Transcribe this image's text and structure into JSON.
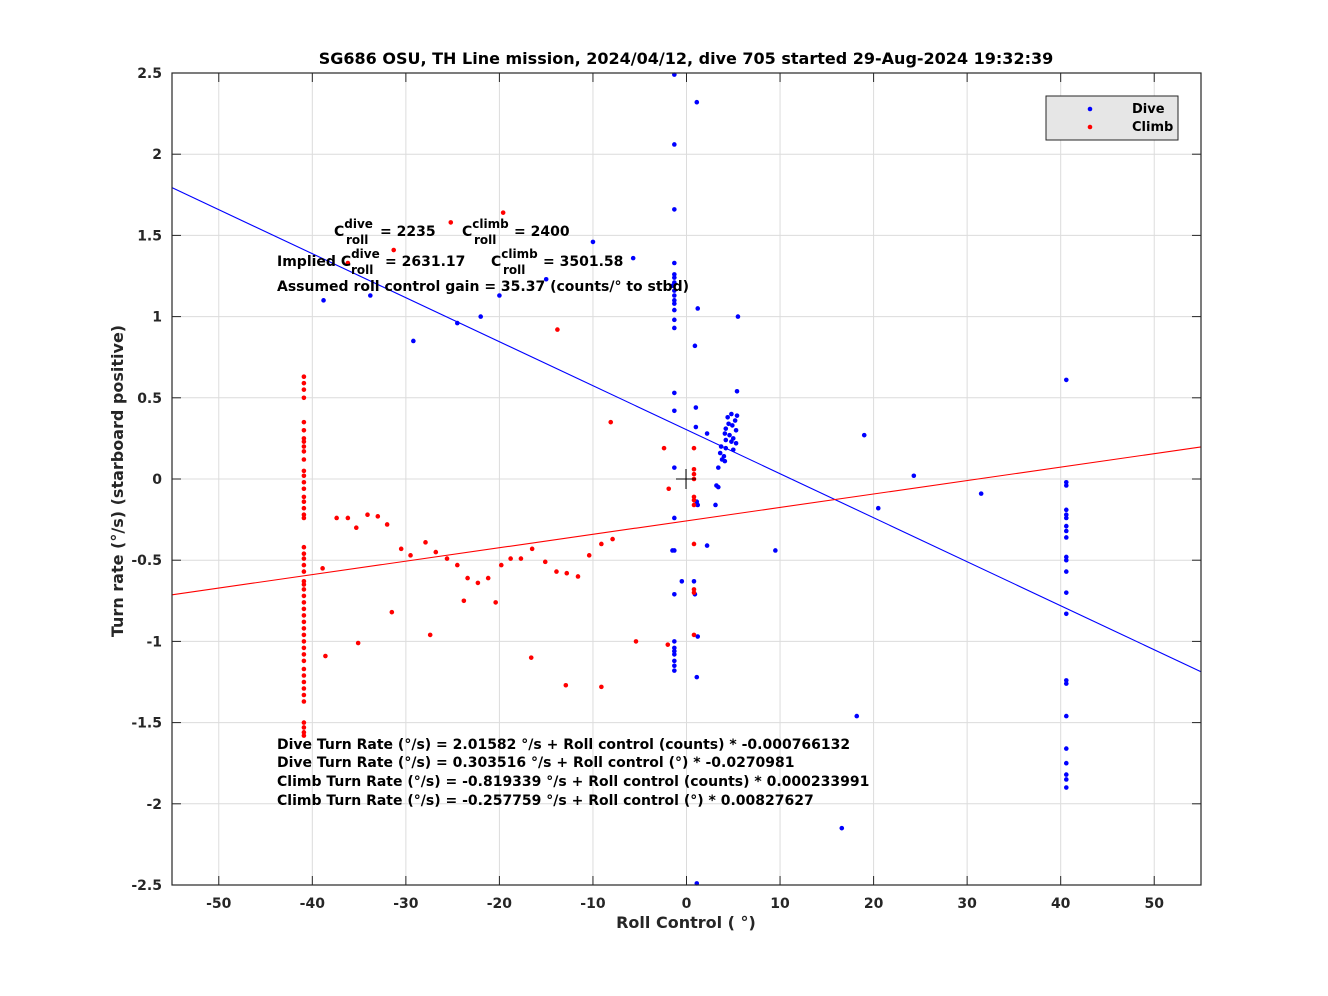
{
  "chart_data": {
    "type": "scatter",
    "title": "SG686 OSU, TH Line mission, 2024/04/12, dive 705 started 29-Aug-2024 19:32:39",
    "xlabel": "Roll Control ( °)",
    "ylabel": "Turn rate (°/s) (starboard positive)",
    "xlim": [
      -55,
      55
    ],
    "ylim": [
      -2.5,
      2.5
    ],
    "xticks": [
      -50,
      -40,
      -30,
      -20,
      -10,
      0,
      10,
      20,
      30,
      40,
      50
    ],
    "xtick_labels": [
      "-50",
      "-40",
      "-30",
      "-20",
      "-10",
      "0",
      "10",
      "20",
      "30",
      "40",
      "50"
    ],
    "yticks": [
      -2.5,
      -2,
      -1.5,
      -1,
      -0.5,
      0,
      0.5,
      1,
      1.5,
      2,
      2.5
    ],
    "ytick_labels": [
      "-2.5",
      "-2",
      "-1.5",
      "-1",
      "-0.5",
      "0",
      "0.5",
      "1",
      "1.5",
      "2",
      "2.5"
    ],
    "grid": true,
    "legend_position": "top-right",
    "legend": [
      "Dive",
      "Climb"
    ],
    "colors": {
      "dive": "#0000ff",
      "climb": "#ff0000",
      "grid": "#dcdcdc",
      "legend_bg": "#e6e6e6"
    },
    "series": [
      {
        "name": "Dive",
        "color": "#0000ff",
        "points": [
          [
            -1.3,
            2.49
          ],
          [
            1.1,
            2.32
          ],
          [
            -1.3,
            2.06
          ],
          [
            -1.3,
            1.66
          ],
          [
            -10,
            1.46
          ],
          [
            -5.7,
            1.36
          ],
          [
            -1.3,
            1.33
          ],
          [
            -1.3,
            1.26
          ],
          [
            -1.3,
            1.24
          ],
          [
            -1.3,
            1.21
          ],
          [
            -1.5,
            1.19
          ],
          [
            -1.3,
            1.16
          ],
          [
            -15,
            1.23
          ],
          [
            -33.8,
            1.13
          ],
          [
            -20,
            1.13
          ],
          [
            -1.3,
            1.13
          ],
          [
            -1.3,
            1.1
          ],
          [
            -1.3,
            1.08
          ],
          [
            -38.8,
            1.1
          ],
          [
            -1.3,
            1.04
          ],
          [
            1.2,
            1.05
          ],
          [
            -22,
            1.0
          ],
          [
            5.5,
            1.0
          ],
          [
            -24.5,
            0.96
          ],
          [
            -1.3,
            0.98
          ],
          [
            -1.3,
            0.93
          ],
          [
            -29.2,
            0.85
          ],
          [
            0.9,
            0.82
          ],
          [
            -1.3,
            0.53
          ],
          [
            5.4,
            0.54
          ],
          [
            1.0,
            0.44
          ],
          [
            -1.3,
            0.42
          ],
          [
            4.8,
            0.4
          ],
          [
            5.4,
            0.39
          ],
          [
            4.4,
            0.38
          ],
          [
            5.2,
            0.36
          ],
          [
            4.5,
            0.34
          ],
          [
            4.9,
            0.33
          ],
          [
            4.2,
            0.31
          ],
          [
            1.0,
            0.32
          ],
          [
            5.3,
            0.3
          ],
          [
            4.1,
            0.28
          ],
          [
            2.2,
            0.28
          ],
          [
            4.6,
            0.27
          ],
          [
            19,
            0.27
          ],
          [
            5.0,
            0.25
          ],
          [
            4.2,
            0.24
          ],
          [
            4.8,
            0.23
          ],
          [
            5.3,
            0.22
          ],
          [
            3.7,
            0.2
          ],
          [
            4.2,
            0.19
          ],
          [
            5.0,
            0.18
          ],
          [
            3.6,
            0.16
          ],
          [
            4.0,
            0.14
          ],
          [
            3.8,
            0.12
          ],
          [
            4.1,
            0.11
          ],
          [
            3.4,
            0.07
          ],
          [
            -1.3,
            0.07
          ],
          [
            24.3,
            0.02
          ],
          [
            40.6,
            -0.02
          ],
          [
            40.6,
            -0.04
          ],
          [
            3.2,
            -0.04
          ],
          [
            3.4,
            -0.05
          ],
          [
            31.5,
            -0.09
          ],
          [
            1.1,
            -0.14
          ],
          [
            1.2,
            -0.16
          ],
          [
            3.1,
            -0.16
          ],
          [
            20.5,
            -0.18
          ],
          [
            40.6,
            -0.19
          ],
          [
            40.6,
            -0.22
          ],
          [
            40.6,
            -0.24
          ],
          [
            -1.3,
            -0.24
          ],
          [
            40.6,
            -0.29
          ],
          [
            40.6,
            -0.32
          ],
          [
            40.6,
            -0.36
          ],
          [
            2.2,
            -0.41
          ],
          [
            9.5,
            -0.44
          ],
          [
            -1.3,
            -0.44
          ],
          [
            -1.5,
            -0.44
          ],
          [
            40.6,
            -0.48
          ],
          [
            40.6,
            -0.5
          ],
          [
            40.6,
            -0.57
          ],
          [
            -0.5,
            -0.63
          ],
          [
            0.8,
            -0.63
          ],
          [
            40.6,
            -0.7
          ],
          [
            -1.3,
            -0.71
          ],
          [
            0.9,
            -0.71
          ],
          [
            40.6,
            -0.83
          ],
          [
            1.2,
            -0.97
          ],
          [
            -1.3,
            -1.0
          ],
          [
            -1.3,
            -1.04
          ],
          [
            -1.3,
            -1.06
          ],
          [
            -1.3,
            -1.08
          ],
          [
            -1.3,
            -1.12
          ],
          [
            -1.3,
            -1.15
          ],
          [
            -1.3,
            -1.18
          ],
          [
            1.1,
            -1.22
          ],
          [
            40.6,
            -1.24
          ],
          [
            40.6,
            -1.26
          ],
          [
            18.2,
            -1.46
          ],
          [
            40.6,
            -1.46
          ],
          [
            40.6,
            -1.66
          ],
          [
            40.6,
            -1.75
          ],
          [
            40.6,
            -1.82
          ],
          [
            40.6,
            -1.85
          ],
          [
            40.6,
            -1.9
          ],
          [
            16.6,
            -2.15
          ],
          [
            40.6,
            0.61
          ],
          [
            1.1,
            -2.49
          ]
        ]
      },
      {
        "name": "Climb",
        "color": "#ff0000",
        "points": [
          [
            -40.9,
            0.63
          ],
          [
            -40.9,
            0.59
          ],
          [
            -40.9,
            0.55
          ],
          [
            -40.9,
            0.5
          ],
          [
            -40.9,
            0.35
          ],
          [
            -40.9,
            0.3
          ],
          [
            -40.9,
            0.25
          ],
          [
            -40.9,
            0.23
          ],
          [
            -40.9,
            0.2
          ],
          [
            -40.9,
            0.17
          ],
          [
            -40.9,
            0.12
          ],
          [
            -40.9,
            0.05
          ],
          [
            -40.9,
            0.02
          ],
          [
            -40.9,
            -0.02
          ],
          [
            -40.9,
            -0.06
          ],
          [
            -40.9,
            -0.11
          ],
          [
            -40.9,
            -0.14
          ],
          [
            -40.9,
            -0.18
          ],
          [
            -40.9,
            -0.22
          ],
          [
            -40.9,
            -0.24
          ],
          [
            -40.9,
            -0.42
          ],
          [
            -40.9,
            -0.46
          ],
          [
            -40.9,
            -0.49
          ],
          [
            -40.9,
            -0.53
          ],
          [
            -40.9,
            -0.57
          ],
          [
            -40.9,
            -0.63
          ],
          [
            -40.9,
            -0.65
          ],
          [
            -40.9,
            -0.68
          ],
          [
            -40.9,
            -0.72
          ],
          [
            -40.9,
            -0.76
          ],
          [
            -40.9,
            -0.8
          ],
          [
            -40.9,
            -0.84
          ],
          [
            -40.9,
            -0.88
          ],
          [
            -40.9,
            -0.92
          ],
          [
            -40.9,
            -0.96
          ],
          [
            -40.9,
            -1.0
          ],
          [
            -40.9,
            -1.04
          ],
          [
            -40.9,
            -1.08
          ],
          [
            -40.9,
            -1.12
          ],
          [
            -40.9,
            -1.17
          ],
          [
            -40.9,
            -1.21
          ],
          [
            -40.9,
            -1.25
          ],
          [
            -40.9,
            -1.29
          ],
          [
            -40.9,
            -1.33
          ],
          [
            -40.9,
            -1.37
          ],
          [
            -40.9,
            -1.5
          ],
          [
            -40.9,
            -1.53
          ],
          [
            -40.9,
            -1.56
          ],
          [
            -40.9,
            -1.58
          ],
          [
            -19.6,
            1.64
          ],
          [
            -25.2,
            1.58
          ],
          [
            -31.3,
            1.41
          ],
          [
            -36.2,
            1.33
          ],
          [
            -13.8,
            0.92
          ],
          [
            -8.1,
            0.35
          ],
          [
            -2.4,
            0.19
          ],
          [
            0.8,
            0.19
          ],
          [
            0.8,
            0.06
          ],
          [
            0.8,
            0.03
          ],
          [
            0.8,
            0.0
          ],
          [
            -1.9,
            -0.06
          ],
          [
            0.8,
            -0.11
          ],
          [
            0.8,
            -0.13
          ],
          [
            0.8,
            -0.16
          ],
          [
            -37.4,
            -0.24
          ],
          [
            -36.2,
            -0.24
          ],
          [
            -34.1,
            -0.22
          ],
          [
            -33.0,
            -0.23
          ],
          [
            -32.0,
            -0.28
          ],
          [
            -35.3,
            -0.3
          ],
          [
            -30.5,
            -0.43
          ],
          [
            -29.5,
            -0.47
          ],
          [
            -27.9,
            -0.39
          ],
          [
            -26.8,
            -0.45
          ],
          [
            -25.6,
            -0.49
          ],
          [
            -24.5,
            -0.53
          ],
          [
            -23.4,
            -0.61
          ],
          [
            -22.3,
            -0.64
          ],
          [
            -21.2,
            -0.61
          ],
          [
            -20.4,
            -0.76
          ],
          [
            -19.8,
            -0.53
          ],
          [
            -18.8,
            -0.49
          ],
          [
            -17.7,
            -0.49
          ],
          [
            -16.5,
            -0.43
          ],
          [
            -15.1,
            -0.51
          ],
          [
            -13.9,
            -0.57
          ],
          [
            -12.8,
            -0.58
          ],
          [
            -11.6,
            -0.6
          ],
          [
            -10.4,
            -0.47
          ],
          [
            -9.1,
            -0.4
          ],
          [
            -7.9,
            -0.37
          ],
          [
            -23.8,
            -0.75
          ],
          [
            -38.9,
            -0.55
          ],
          [
            -31.5,
            -0.82
          ],
          [
            -27.4,
            -0.96
          ],
          [
            -35.1,
            -1.01
          ],
          [
            -38.6,
            -1.09
          ],
          [
            -16.6,
            -1.1
          ],
          [
            -5.4,
            -1.0
          ],
          [
            -2.0,
            -1.02
          ],
          [
            0.8,
            -0.4
          ],
          [
            0.8,
            -0.68
          ],
          [
            0.8,
            -0.7
          ],
          [
            0.8,
            -0.96
          ],
          [
            -12.9,
            -1.27
          ],
          [
            -9.1,
            -1.28
          ]
        ]
      }
    ],
    "lines": [
      {
        "name": "Dive fit",
        "color": "#0000ff",
        "intercept": 0.303516,
        "slope": -0.0270981
      },
      {
        "name": "Climb fit",
        "color": "#ff0000",
        "intercept": -0.257759,
        "slope": 0.00827627
      }
    ],
    "annotations": {
      "c_roll_dive": "= 2235",
      "c_roll_climb": "= 2400",
      "implied_label": "Implied",
      "implied_dive": "= 2631.17",
      "implied_climb": "= 3501.58",
      "c_base": "C",
      "sub_roll": "roll",
      "sup_dive": "dive",
      "sup_climb": "climb",
      "gain": "Assumed roll control gain = 35.37 (counts/° to stbd)",
      "eq1": "Dive Turn Rate (°/s) = 2.01582 °/s + Roll control (counts) * -0.000766132",
      "eq2": "Dive Turn Rate (°/s) = 0.303516  °/s + Roll control (°) * -0.0270981",
      "eq3": "Climb Turn Rate (°/s) = -0.819339 °/s + Roll control (counts) * 0.000233991",
      "eq4": "Climb Turn Rate (°/s) = -0.257759 °/s + Roll control (°) * 0.00827627"
    }
  }
}
